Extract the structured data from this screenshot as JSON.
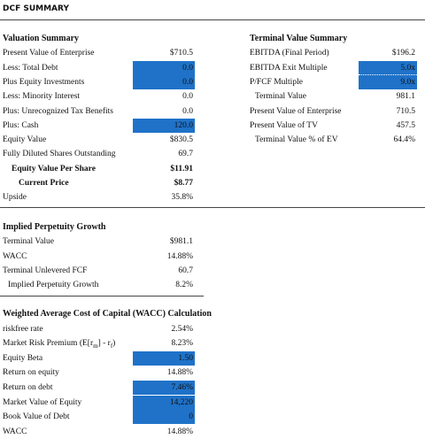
{
  "header": {
    "title": "DCF SUMMARY"
  },
  "valuation_summary": {
    "title": "Valuation Summary",
    "rows": [
      {
        "label": "Present Value of Enterprise",
        "value": "$710.5"
      },
      {
        "label": "Less: Total Debt",
        "value": "0.0"
      },
      {
        "label": "Plus Equity Investments",
        "value": "0.0"
      },
      {
        "label": "Less: Minority Interest",
        "value": "0.0"
      },
      {
        "label": "Plus: Unrecognized Tax Benefits",
        "value": "0.0"
      },
      {
        "label": "Plus: Cash",
        "value": "120.0"
      },
      {
        "label": "Equity Value",
        "value": "$830.5"
      },
      {
        "label": "Fully Diluted Shares Outstanding",
        "value": "69.7"
      },
      {
        "label": "Equity Value Per Share",
        "value": "$11.91"
      },
      {
        "label": "Current Price",
        "value": "$8.77"
      },
      {
        "label": "Upside",
        "value": "35.8%"
      }
    ]
  },
  "terminal_value_summary": {
    "title": "Terminal Value Summary",
    "rows": [
      {
        "label": "EBITDA (Final Period)",
        "value": "$196.2"
      },
      {
        "label": "EBITDA Exit Multiple",
        "value": "5.0x"
      },
      {
        "label": "P/FCF Multiple",
        "value": "9.0x"
      },
      {
        "label": "Terminal Value",
        "value": "981.1"
      },
      {
        "label": "Present Value of Enterprise",
        "value": "710.5"
      },
      {
        "label": "Present Value of TV",
        "value": "457.5"
      },
      {
        "label": "Terminal Value % of EV",
        "value": "64.4%"
      }
    ]
  },
  "implied_perpetuity_growth": {
    "title": "Implied Perpetuity Growth",
    "rows": [
      {
        "label": "Terminal Value",
        "value": "$981.1"
      },
      {
        "label": "WACC",
        "value": "14.88%"
      },
      {
        "label": "Terminal Unlevered FCF",
        "value": "60.7"
      },
      {
        "label": "Implied Perpetuity Growth",
        "value": "8.2%"
      }
    ]
  },
  "wacc": {
    "title": "Weighted Average Cost of Capital (WACC) Calculation",
    "rows": [
      {
        "label": "riskfree rate",
        "value": "2.54%"
      },
      {
        "label": [
          "Market Risk Premium (E[r",
          "m",
          "] - r",
          "f",
          ")"
        ],
        "value": "8.23%"
      },
      {
        "label": "Equity Beta",
        "value": "1.50"
      },
      {
        "label": "Return on equity",
        "value": "14.88%"
      },
      {
        "label": "Return on debt",
        "value": "7.46%"
      },
      {
        "label": "Market Value of Equity",
        "value": "14,220"
      },
      {
        "label": "Book Value of Debt",
        "value": "0"
      },
      {
        "label": "WACC",
        "value": "14.88%"
      }
    ]
  }
}
